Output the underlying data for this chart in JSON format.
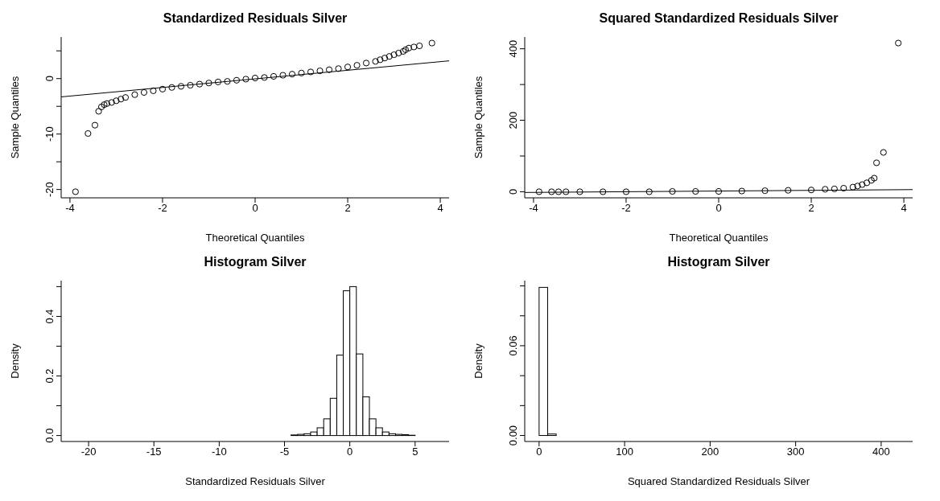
{
  "chart_data": [
    {
      "type": "scatter",
      "title": "Standardized Residuals Silver",
      "xlabel": "Theoretical Quantiles",
      "ylabel": "Sample Quantiles",
      "xlim": [
        -4.19,
        4.19
      ],
      "xticks": [
        -4,
        -2,
        0,
        2,
        4
      ],
      "ylim": [
        -21.5,
        7.5
      ],
      "yticks": [
        -20,
        {
          "value": -15,
          "label": null
        },
        -10,
        {
          "value": -5,
          "label": null
        },
        0,
        {
          "value": 5,
          "label": null
        }
      ],
      "series": [
        {
          "type": "scatter",
          "marker": "circle",
          "color": "#000000",
          "x": [
            -3.88,
            -3.61,
            -3.46,
            -3.38,
            -3.32,
            -3.26,
            -3.2,
            -3.1,
            -3.0,
            -2.9,
            -2.8,
            -2.6,
            -2.4,
            -2.2,
            -2.0,
            -1.8,
            -1.6,
            -1.4,
            -1.2,
            -1.0,
            -0.8,
            -0.6,
            -0.4,
            -0.2,
            0,
            0.2,
            0.4,
            0.6,
            0.8,
            1.0,
            1.2,
            1.4,
            1.6,
            1.8,
            2.0,
            2.2,
            2.4,
            2.6,
            2.7,
            2.8,
            2.9,
            3.0,
            3.1,
            3.2,
            3.25,
            3.32,
            3.43,
            3.55,
            3.82
          ],
          "values": [
            -20.4,
            -9.9,
            -8.4,
            -5.9,
            -5.1,
            -4.7,
            -4.5,
            -4.3,
            -4.0,
            -3.7,
            -3.4,
            -2.9,
            -2.5,
            -2.2,
            -1.9,
            -1.6,
            -1.4,
            -1.2,
            -1.0,
            -0.8,
            -0.6,
            -0.5,
            -0.3,
            -0.1,
            0.1,
            0.2,
            0.4,
            0.6,
            0.8,
            1.0,
            1.2,
            1.4,
            1.6,
            1.8,
            2.1,
            2.4,
            2.8,
            3.1,
            3.4,
            3.7,
            4.0,
            4.3,
            4.6,
            4.9,
            5.2,
            5.5,
            5.7,
            5.9,
            6.4
          ]
        },
        {
          "type": "line",
          "marker": "none",
          "color": "#000000",
          "x": [
            -4.19,
            4.19
          ],
          "values": [
            -3.3,
            3.2
          ]
        }
      ]
    },
    {
      "type": "scatter",
      "title": "Squared Standardized Residuals Silver",
      "xlabel": "Theoretical Quantiles",
      "ylabel": "Sample Quantiles",
      "xlim": [
        -4.19,
        4.19
      ],
      "xticks": [
        -4,
        -2,
        0,
        2,
        4
      ],
      "ylim": [
        -17,
        433
      ],
      "yticks": [
        0,
        {
          "value": 100,
          "label": null
        },
        200,
        {
          "value": 300,
          "label": null
        },
        400
      ],
      "series": [
        {
          "type": "scatter",
          "marker": "circle",
          "color": "#000000",
          "x": [
            -3.88,
            -3.61,
            -3.46,
            -3.3,
            -3.0,
            -2.5,
            -2.0,
            -1.5,
            -1.0,
            -0.5,
            0,
            0.5,
            1.0,
            1.5,
            2.0,
            2.3,
            2.5,
            2.7,
            2.9,
            3.0,
            3.1,
            3.2,
            3.3,
            3.36,
            3.41,
            3.56,
            3.88
          ],
          "values": [
            0,
            0,
            0,
            0,
            0,
            0,
            0,
            0,
            1,
            1,
            1,
            2,
            3,
            4,
            5,
            7,
            8,
            10,
            13,
            16,
            20,
            25,
            32,
            38,
            81,
            110,
            416
          ]
        },
        {
          "type": "line",
          "marker": "none",
          "color": "#000000",
          "x": [
            -4.19,
            4.19
          ],
          "values": [
            -2,
            6
          ]
        }
      ]
    },
    {
      "type": "histogram",
      "title": "Histogram Silver",
      "xlabel": "Standardized Residuals Silver",
      "ylabel": "Density",
      "color": "#ffffff",
      "xlim": [
        -22.1,
        7.6
      ],
      "xticks": [
        -20,
        -15,
        -10,
        -5,
        0,
        5
      ],
      "ylim": [
        -0.02,
        0.52
      ],
      "yticks": [
        {
          "value": 0,
          "label": "0.0"
        },
        {
          "value": 0.1,
          "label": null
        },
        {
          "value": 0.2,
          "label": "0.2"
        },
        {
          "value": 0.3,
          "label": null
        },
        {
          "value": 0.4,
          "label": "0.4"
        },
        {
          "value": 0.5,
          "label": null
        }
      ],
      "bins": [
        -21,
        -20.5,
        -20,
        -19.5,
        -19,
        -18.5,
        -18,
        -17.5,
        -17,
        -16.5,
        -16,
        -15.5,
        -15,
        -14.5,
        -14,
        -13.5,
        -13,
        -12.5,
        -12,
        -11.5,
        -11,
        -10.5,
        -10,
        -9.5,
        -9,
        -8.5,
        -8,
        -7.5,
        -7,
        -6.5,
        -6,
        -5.5,
        -5,
        -4.5,
        -4,
        -3.5,
        -3,
        -2.5,
        -2,
        -1.5,
        -1,
        -0.5,
        0,
        0.5,
        1,
        1.5,
        2,
        2.5,
        3,
        3.5,
        4,
        4.5,
        5,
        5.5,
        6,
        6.5
      ],
      "values": [
        0,
        0,
        0,
        0,
        0,
        0,
        0,
        0,
        0,
        0,
        0,
        0,
        0,
        0,
        0,
        0,
        0,
        0,
        0,
        0,
        0,
        0,
        0,
        0,
        0,
        0,
        0,
        0,
        0,
        0,
        0,
        0,
        0,
        0.002,
        0.004,
        0.006,
        0.012,
        0.026,
        0.056,
        0.125,
        0.27,
        0.486,
        0.5,
        0.274,
        0.13,
        0.056,
        0.026,
        0.012,
        0.006,
        0.004,
        0.003,
        0.001,
        0,
        0,
        0
      ]
    },
    {
      "type": "histogram",
      "title": "Histogram Silver",
      "xlabel": "Squared Standardized Residuals Silver",
      "ylabel": "Density",
      "color": "#ffffff",
      "xlim": [
        -16.8,
        436.8
      ],
      "xticks": [
        0,
        100,
        200,
        300,
        400
      ],
      "ylim": [
        -0.004,
        0.1035
      ],
      "yticks": [
        {
          "value": 0,
          "label": "0.00"
        },
        {
          "value": 0.02,
          "label": null
        },
        {
          "value": 0.04,
          "label": null
        },
        {
          "value": 0.06,
          "label": "0.06"
        },
        {
          "value": 0.08,
          "label": null
        },
        {
          "value": 0.1,
          "label": null
        }
      ],
      "bins": [
        0,
        10,
        20,
        30,
        40,
        50,
        60,
        70,
        80,
        90,
        100,
        110,
        120,
        130,
        140,
        150,
        160,
        170,
        180,
        190,
        200,
        210,
        220,
        230,
        240,
        250,
        260,
        270,
        280,
        290,
        300,
        310,
        320,
        330,
        340,
        350,
        360,
        370,
        380,
        390,
        400,
        410,
        420
      ],
      "values": [
        0.099,
        0.001,
        0,
        0,
        0,
        0,
        0,
        0,
        0,
        0,
        0,
        0,
        0,
        0,
        0,
        0,
        0,
        0,
        0,
        0,
        0,
        0,
        0,
        0,
        0,
        0,
        0,
        0,
        0,
        0,
        0,
        0,
        0,
        0,
        0,
        0,
        0,
        0,
        0,
        0,
        0,
        0
      ]
    }
  ]
}
